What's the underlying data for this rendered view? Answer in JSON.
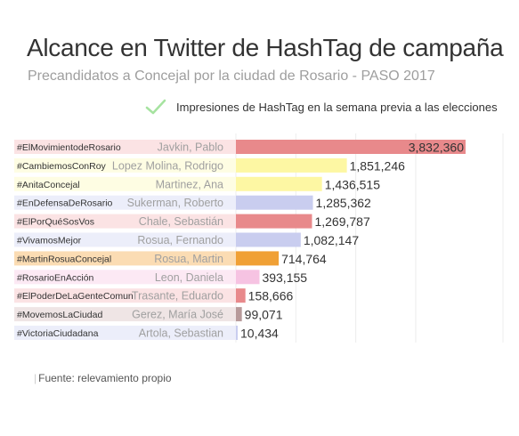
{
  "chart_data": {
    "type": "bar",
    "orientation": "horizontal",
    "title": "Alcance en Twitter de HashTag de campaña",
    "subtitle": "Precandidatos a Concejal por la ciudad de Rosario - PASO 2017",
    "legend": {
      "label": "Impresiones de HashTag en la semana previa a las elecciones",
      "icon": "check-icon",
      "color": "#a6e3a0",
      "position": "top-right"
    },
    "xlim": [
      0,
      4000000
    ],
    "grid": true,
    "categories": [
      {
        "hashtag": "#ElMovimientodeRosario",
        "candidate": "Javkin, Pablo",
        "value": 3832360,
        "label": "3,832,360",
        "color": "#e8898b",
        "band": "#fbe3e4"
      },
      {
        "hashtag": "#CambiemosConRoy",
        "candidate": "Lopez Molina, Rodrigo",
        "value": 1851246,
        "label": "1,851,246",
        "color": "#fdf7a3",
        "band": "#fefde3"
      },
      {
        "hashtag": "#AnitaConcejal",
        "candidate": "Martinez, Ana",
        "value": 1436515,
        "label": "1,436,515",
        "color": "#fdf7a3",
        "band": "#fefde3"
      },
      {
        "hashtag": "#EnDefensaDeRosario",
        "candidate": "Sukerman, Roberto",
        "value": 1285362,
        "label": "1,285,362",
        "color": "#c9cdef",
        "band": "#eceefa"
      },
      {
        "hashtag": "#ElPorQuéSosVos",
        "candidate": "Chale, Sebastián",
        "value": 1269787,
        "label": "1,269,787",
        "color": "#e8898b",
        "band": "#fbe3e4"
      },
      {
        "hashtag": "#VivamosMejor",
        "candidate": "Rosua, Fernando",
        "value": 1082147,
        "label": "1,082,147",
        "color": "#c9cdef",
        "band": "#eceefa"
      },
      {
        "hashtag": "#MartinRosuaConcejal",
        "candidate": "Rosua, Martin",
        "value": 714764,
        "label": "714,764",
        "color": "#f0a035",
        "band": "#fbdcb3"
      },
      {
        "hashtag": "#RosarioEnAcción",
        "candidate": "Leon, Daniela",
        "value": 393155,
        "label": "393,155",
        "color": "#f6c3e2",
        "band": "#fce9f4"
      },
      {
        "hashtag": "#ElPoderDeLaGenteComun",
        "candidate": "Trasante, Eduardo",
        "value": 158666,
        "label": "158,666",
        "color": "#e8898b",
        "band": "#fbe3e4"
      },
      {
        "hashtag": "#MovemosLaCiudad",
        "candidate": "Gerez, María José",
        "value": 99071,
        "label": "99,071",
        "color": "#b79a9a",
        "band": "#efe5e5"
      },
      {
        "hashtag": "#VictoriaCiudadana",
        "candidate": "Artola, Sebastian",
        "value": 10434,
        "label": "10,434",
        "color": "#c9cdef",
        "band": "#eceefa"
      }
    ]
  },
  "source": "Fuente: relevamiento propio"
}
